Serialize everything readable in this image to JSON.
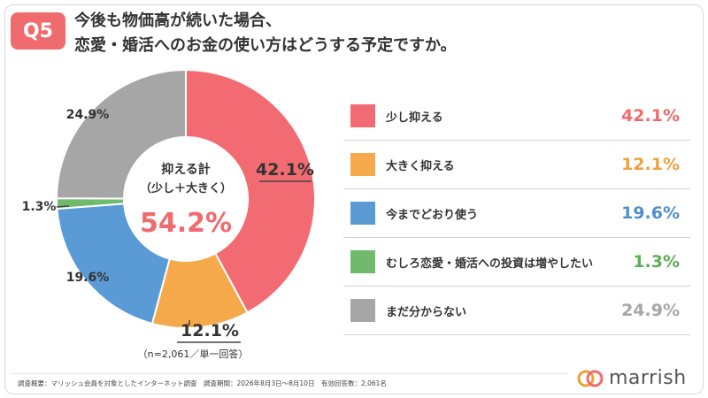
{
  "badge": "Q5",
  "title": {
    "line1": "今後も物価高が続いた場合、",
    "line2": "恋愛・婚活へのお金の使い方はどうする予定ですか。"
  },
  "center": {
    "label1": "抑える計",
    "label2": "（少し＋大きく）",
    "value": "54.2%"
  },
  "sample_note": "（n=2,061／単一回答）",
  "footer": "調査概要：マリッシュ会員を対象としたインターネット調査　調査期間：2026年8月3日～8月10日　有効回答数：2,061名",
  "logo": {
    "text": "marrish"
  },
  "colors": {
    "pink": "#f26b72",
    "orange": "#f6a94a",
    "blue": "#5b9bd5",
    "green": "#70ba6c",
    "gray": "#a6a6a6",
    "center_value": "#ef6b6e"
  },
  "legend": [
    {
      "label": "少し抑える",
      "value": "42.1%",
      "color": "#f26b72",
      "value_color": "#ef6b6e"
    },
    {
      "label": "大きく抑える",
      "value": "12.1%",
      "color": "#f6a94a",
      "value_color": "#f0a040"
    },
    {
      "label": "今までどおり使う",
      "value": "19.6%",
      "color": "#5b9bd5",
      "value_color": "#4f8fd0"
    },
    {
      "label": "むしろ恋愛・婚活への投資は増やしたい",
      "value": "1.3%",
      "color": "#70ba6c",
      "value_color": "#5daf58"
    },
    {
      "label": "まだ分からない",
      "value": "24.9%",
      "color": "#a6a6a6",
      "value_color": "#a6a6a6"
    }
  ],
  "chart_data": {
    "type": "pie",
    "categories": [
      "少し抑える",
      "大きく抑える",
      "今までどおり使う",
      "むしろ恋愛・婚活への投資は増やしたい",
      "まだ分からない"
    ],
    "values": [
      42.1,
      12.1,
      19.6,
      1.3,
      24.9
    ],
    "value_labels": [
      "42.1%",
      "12.1%",
      "19.6%",
      "1.3%",
      "24.9%"
    ],
    "colors": [
      "#f26b72",
      "#f6a94a",
      "#5b9bd5",
      "#70ba6c",
      "#a6a6a6"
    ],
    "style": "donut",
    "start": "top",
    "direction": "clockwise",
    "title": "今後も物価高が続いた場合、恋愛・婚活へのお金の使い方はどうする予定ですか。"
  }
}
